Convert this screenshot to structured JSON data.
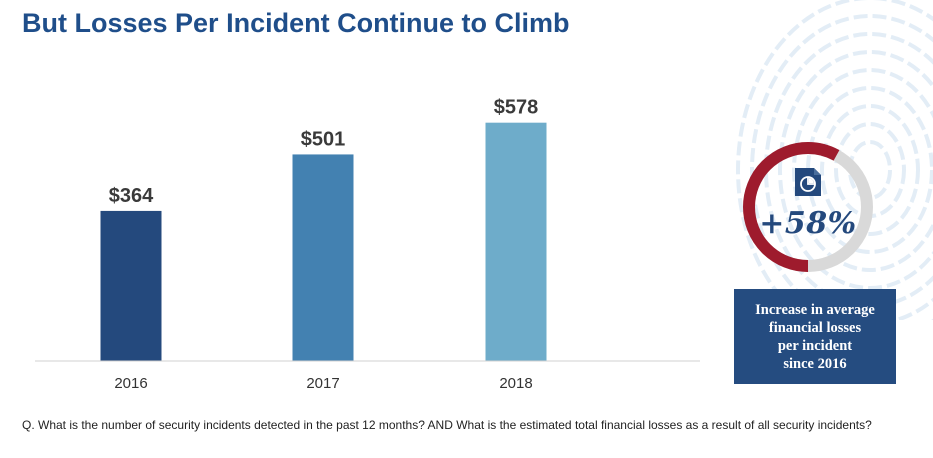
{
  "title": "But Losses Per Incident Continue to Climb",
  "colors": {
    "title": "#1f4e8a",
    "bars": [
      "#24497d",
      "#4381b1",
      "#6eacca"
    ],
    "gauge_track": "#d9d9d9",
    "gauge_arc": "#9e1b2d",
    "box": "#254c80"
  },
  "chart_data": {
    "type": "bar",
    "categories": [
      "2016",
      "2017",
      "2018"
    ],
    "values": [
      364,
      501,
      578
    ],
    "value_labels": [
      "$364",
      "$501",
      "$578"
    ],
    "title": "",
    "xlabel": "",
    "ylabel": "",
    "ylim": [
      0,
      650
    ],
    "grid": false,
    "legend": "none"
  },
  "callout": {
    "icon": "document-pie-chart-icon",
    "value": "+58%",
    "ring_fraction": 0.58,
    "text": "Increase in average\nfinancial losses\nper incident\nsince 2016"
  },
  "footnote": "Q. What is the number of security incidents detected in the past 12 months? AND What is the estimated total financial losses as a result of all security incidents?"
}
